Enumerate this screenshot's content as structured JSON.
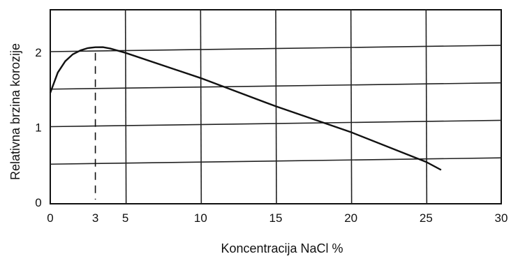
{
  "chart_data": {
    "type": "line",
    "xlabel": "Koncentracija NaCl %",
    "ylabel": "Relativna brzina korozije",
    "xlim": [
      0,
      30
    ],
    "ylim": [
      0,
      2.5
    ],
    "x_ticks": [
      0,
      3,
      5,
      10,
      15,
      20,
      25,
      30
    ],
    "y_ticks": [
      0,
      1,
      2
    ],
    "x_gridlines": [
      5,
      10,
      15,
      20,
      25
    ],
    "y_gridlines": [
      0.5,
      1,
      1.5,
      2
    ],
    "grid": true,
    "series": [
      {
        "x": [
          0,
          0.5,
          1,
          1.5,
          2,
          2.5,
          3,
          3.5,
          4,
          5,
          10,
          15,
          20,
          25,
          26
        ],
        "values": [
          1.45,
          1.72,
          1.87,
          1.96,
          2.01,
          2.04,
          2.05,
          2.05,
          2.03,
          1.97,
          1.62,
          1.23,
          0.87,
          0.46,
          0.35
        ]
      }
    ],
    "reference_line": {
      "x": 3,
      "y": 2.05,
      "style": "dashed"
    }
  }
}
